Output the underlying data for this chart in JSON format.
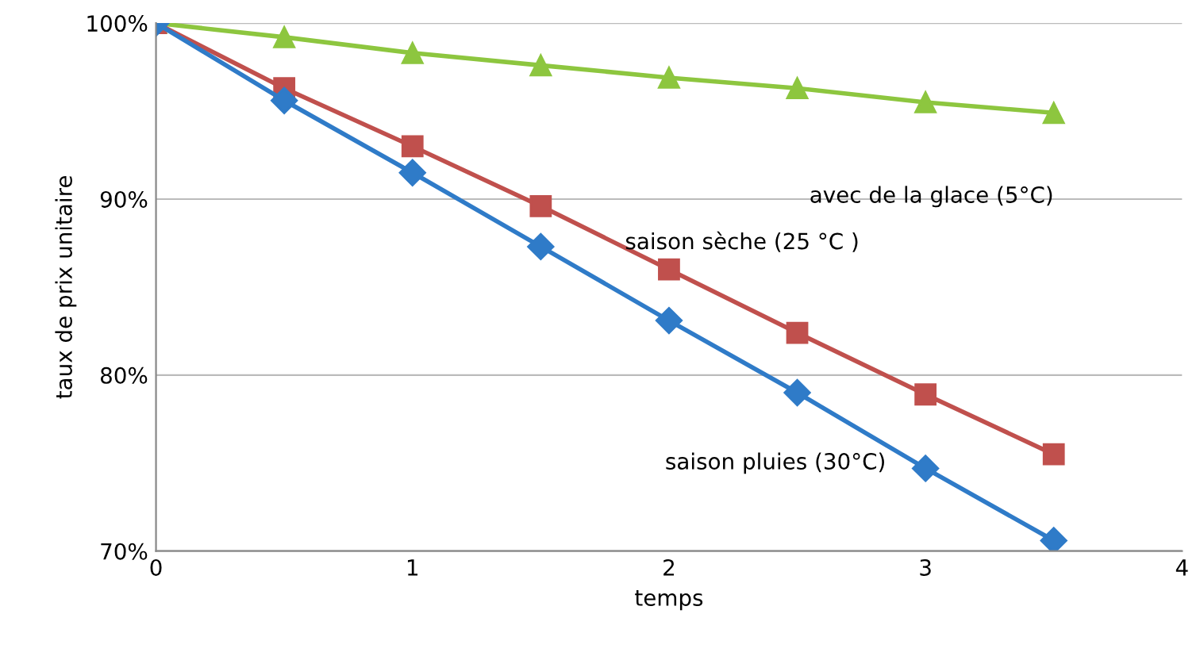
{
  "chart_data": {
    "type": "line",
    "xlabel": "temps",
    "ylabel": "taux de prix unitaire",
    "x": [
      0,
      0.5,
      1,
      1.5,
      2,
      2.5,
      3,
      3.5
    ],
    "series": [
      {
        "name": "avec de la glace (5°C)",
        "color": "#8dc63f",
        "marker": "triangle",
        "values": [
          100,
          99.2,
          98.3,
          97.6,
          96.9,
          96.3,
          95.5,
          94.9
        ]
      },
      {
        "name": "saison sèche (25 °C )",
        "color": "#c0504d",
        "marker": "square",
        "values": [
          100,
          96.3,
          93.0,
          89.6,
          86.0,
          82.4,
          78.9,
          75.5
        ]
      },
      {
        "name": "saison pluies (30°C)",
        "color": "#2f7bc8",
        "marker": "diamond",
        "values": [
          100,
          95.6,
          91.5,
          87.3,
          83.1,
          79.0,
          74.7,
          70.6
        ]
      }
    ],
    "xlim": [
      0,
      4
    ],
    "xticks": [
      0,
      1,
      2,
      3,
      4
    ],
    "ylim": [
      70,
      100
    ],
    "yticks": [
      {
        "value": 70,
        "label": "70%"
      },
      {
        "value": 80,
        "label": "80%"
      },
      {
        "value": 90,
        "label": "90%"
      },
      {
        "value": 100,
        "label": "100%"
      }
    ],
    "grid": "y",
    "legend": false,
    "line_style": "solid"
  }
}
